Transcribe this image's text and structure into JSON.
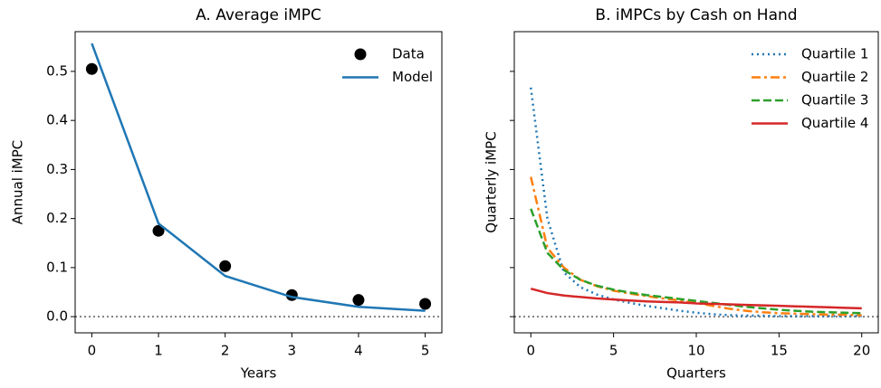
{
  "chart_data": [
    {
      "type": "line",
      "title": "A. Average iMPC",
      "xlabel": "Years",
      "ylabel": "Annual iMPC",
      "x": [
        0,
        1,
        2,
        3,
        4,
        5
      ],
      "series": [
        {
          "name": "Data",
          "color": "#000000",
          "mode": "markers",
          "values": [
            0.505,
            0.175,
            0.103,
            0.044,
            0.034,
            0.026
          ]
        },
        {
          "name": "Model",
          "color": "#1f77b4",
          "mode": "lines",
          "style": "solid",
          "values": [
            0.557,
            0.19,
            0.083,
            0.04,
            0.02,
            0.012
          ]
        }
      ],
      "xlim": [
        -0.25,
        5.25
      ],
      "xticks": [
        0,
        1,
        2,
        3,
        4,
        5
      ],
      "ylim": [
        -0.033,
        0.581
      ],
      "yticks": [
        {
          "value": 0,
          "label": "0.0"
        },
        {
          "value": 0.1,
          "label": "0.1"
        },
        {
          "value": 0.2,
          "label": "0.2"
        },
        {
          "value": 0.3,
          "label": "0.3"
        },
        {
          "value": 0.4,
          "label": "0.4"
        },
        {
          "value": 0.5,
          "label": "0.5"
        }
      ],
      "reference_line": 0,
      "legend": "upper right"
    },
    {
      "type": "line",
      "title": "B. iMPCs by Cash on Hand",
      "xlabel": "Quarters",
      "ylabel": "Quarterly iMPC",
      "x": [
        0,
        1,
        2,
        3,
        4,
        5,
        6,
        7,
        8,
        9,
        10,
        11,
        12,
        13,
        14,
        15,
        16,
        17,
        18,
        19,
        20
      ],
      "series": [
        {
          "name": "Quartile 1",
          "color": "#1f77b4",
          "mode": "lines",
          "style": "dotted",
          "values": [
            0.467,
            0.2,
            0.09,
            0.06,
            0.045,
            0.035,
            0.028,
            0.022,
            0.017,
            0.012,
            0.008,
            0.005,
            0.003,
            0.002,
            0.002,
            0.001,
            0.001,
            0.001,
            0.001,
            0.001,
            0.001
          ]
        },
        {
          "name": "Quartile 2",
          "color": "#ff7f0e",
          "mode": "lines",
          "style": "dashdot",
          "values": [
            0.285,
            0.14,
            0.1,
            0.075,
            0.062,
            0.053,
            0.047,
            0.042,
            0.037,
            0.033,
            0.028,
            0.022,
            0.016,
            0.012,
            0.009,
            0.007,
            0.006,
            0.005,
            0.004,
            0.004,
            0.003
          ]
        },
        {
          "name": "Quartile 3",
          "color": "#2ca02c",
          "mode": "lines",
          "style": "dashed",
          "values": [
            0.22,
            0.13,
            0.095,
            0.075,
            0.063,
            0.055,
            0.049,
            0.044,
            0.04,
            0.036,
            0.032,
            0.028,
            0.024,
            0.02,
            0.017,
            0.014,
            0.012,
            0.01,
            0.009,
            0.008,
            0.007
          ]
        },
        {
          "name": "Quartile 4",
          "color": "#d62728",
          "mode": "lines",
          "style": "solid",
          "values": [
            0.057,
            0.048,
            0.043,
            0.04,
            0.037,
            0.035,
            0.033,
            0.031,
            0.03,
            0.029,
            0.027,
            0.026,
            0.025,
            0.024,
            0.023,
            0.022,
            0.021,
            0.02,
            0.019,
            0.018,
            0.017
          ]
        }
      ],
      "xlim": [
        -1,
        21
      ],
      "xticks": [
        0,
        5,
        10,
        15,
        20
      ],
      "ylim": [
        -0.033,
        0.581
      ],
      "yticks": [
        0,
        0.1,
        0.2,
        0.3,
        0.4,
        0.5
      ],
      "ytick_labels": false,
      "reference_line": 0,
      "legend": "upper right"
    }
  ]
}
